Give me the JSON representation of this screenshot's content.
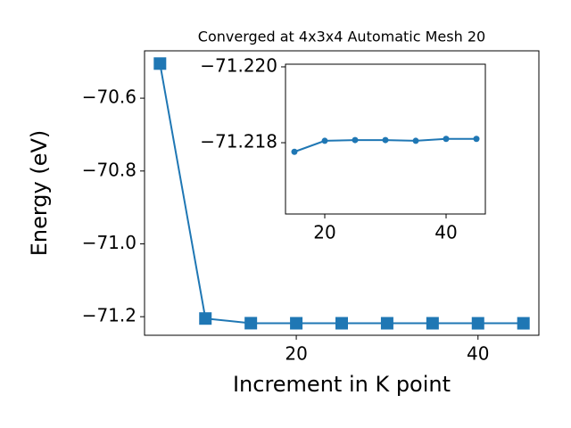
{
  "chart_data": [
    {
      "type": "line",
      "title": "Converged at 4x3x4 Automatic Mesh 20",
      "x_label": "Increment in K point",
      "y_label": "Energy (eV)",
      "x": [
        5,
        10,
        15,
        20,
        25,
        30,
        35,
        40,
        45
      ],
      "series": [
        {
          "color": "#1f77b4",
          "marker": "square",
          "values": [
            -70.505,
            -71.205,
            -71.2178,
            -71.218,
            -71.218,
            -71.218,
            -71.218,
            -71.2181,
            -71.2181
          ]
        }
      ],
      "xlim": [
        3.3,
        46.7
      ],
      "xticks": [
        20,
        40
      ],
      "ylim": [
        -71.251,
        -70.47
      ],
      "yticks": [
        {
          "value": -71.2,
          "label": "−71.2"
        },
        {
          "value": -71.0,
          "label": "−71.0"
        },
        {
          "value": -70.8,
          "label": "−70.8"
        },
        {
          "value": -70.6,
          "label": "−70.6"
        }
      ]
    },
    {
      "type": "line",
      "x": [
        15,
        20,
        25,
        30,
        35,
        40,
        45
      ],
      "series": [
        {
          "color": "#1f77b4",
          "marker": "circle",
          "values": [
            -71.21776,
            -71.21805,
            -71.21807,
            -71.21807,
            -71.21805,
            -71.2181,
            -71.2181
          ]
        }
      ],
      "xlim": [
        13.53,
        46.47
      ],
      "xticks": [
        20,
        40
      ],
      "ylim": [
        -71.21612,
        -71.22007
      ],
      "yticks": [
        {
          "value": -71.218,
          "label": "−71.218"
        },
        {
          "value": -71.22,
          "label": "−71.220"
        }
      ]
    }
  ]
}
